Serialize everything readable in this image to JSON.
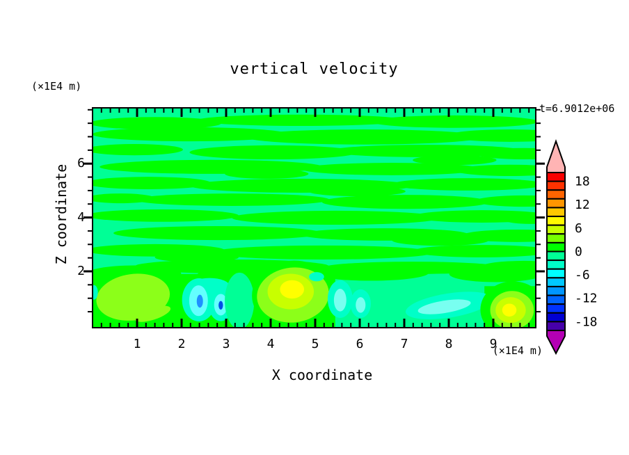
{
  "page": {
    "background": "#ffffff",
    "text_color": "#000000"
  },
  "chart_data": {
    "type": "heatmap",
    "subtype": "filled-contour",
    "title": "vertical velocity",
    "time_annotation": "t=6.9012e+06",
    "x_axis": {
      "label": "X coordinate",
      "units_label": "(×1E4 m)",
      "min": 0,
      "max": 9.95,
      "major_ticks": [
        1,
        2,
        3,
        4,
        5,
        6,
        7,
        8,
        9
      ],
      "minor_tick_step": 0.2
    },
    "z_axis": {
      "label": "Z coordinate",
      "units_label": "(×1E4 m)",
      "min": 0,
      "max": 8.07,
      "major_ticks": [
        2,
        4,
        6
      ],
      "minor_tick_step": 0.5
    },
    "colorbar": {
      "tick_labels": [
        18,
        12,
        6,
        0,
        -6,
        -12,
        -18
      ],
      "max_level": 20.25,
      "min_level": -20.25,
      "level_interval": 2.25,
      "colors_top_to_bottom": [
        "#fa0000",
        "#ff3200",
        "#ff6400",
        "#ff9600",
        "#ffc800",
        "#fffa00",
        "#c8ff00",
        "#78ff00",
        "#00ff00",
        "#00ff96",
        "#00ffc8",
        "#00ffff",
        "#00c8ff",
        "#0096ff",
        "#0064ff",
        "#0032ff",
        "#0000d2",
        "#4600aa"
      ],
      "over_arrow_color": "#ffb4b4",
      "under_arrow_color": "#b400b4"
    },
    "field": {
      "description": "Vertical velocity field: weak alternating horizontal streaks near 0 (values between -2.25 and +2.25) above z=2; stronger convective structures below z=2 with updraft maxima ~+8 near x=4.5,z=1.3 and x=9.4,z=0.6, a broad updraft ~+4 near x=0.9,z=1.0, and downdraft cores to ~ -10 near x=2.4-2.9,z=0.8-0.9.",
      "background_color": "#00ff96",
      "background_value_range": [
        -2.25,
        0
      ],
      "streak_color": "#00ff00",
      "streak_value_range": [
        0,
        2.25
      ],
      "streaks": [
        [
          1.41,
          7.5,
          1.48,
          0.23
        ],
        [
          4.69,
          7.61,
          2.34,
          0.21
        ],
        [
          8.13,
          7.56,
          1.88,
          0.23
        ],
        [
          2.19,
          7.09,
          2.19,
          0.26
        ],
        [
          6.09,
          6.99,
          2.66,
          0.28
        ],
        [
          9.38,
          7.04,
          1.41,
          0.23
        ],
        [
          0.94,
          6.52,
          1.09,
          0.21
        ],
        [
          4.06,
          6.42,
          1.88,
          0.26
        ],
        [
          7.5,
          6.47,
          2.19,
          0.23
        ],
        [
          9.69,
          6.37,
          1.09,
          0.21
        ],
        [
          2.66,
          5.88,
          2.5,
          0.26
        ],
        [
          6.72,
          5.8,
          2.03,
          0.23
        ],
        [
          9.38,
          5.75,
          1.25,
          0.21
        ],
        [
          1.25,
          5.28,
          1.41,
          0.23
        ],
        [
          4.69,
          5.18,
          2.5,
          0.26
        ],
        [
          8.44,
          5.23,
          1.72,
          0.23
        ],
        [
          3.13,
          4.66,
          2.19,
          0.23
        ],
        [
          7.03,
          4.58,
          1.88,
          0.26
        ],
        [
          9.69,
          4.61,
          1.09,
          0.21
        ],
        [
          1.56,
          4.07,
          1.72,
          0.23
        ],
        [
          5.47,
          3.99,
          2.34,
          0.26
        ],
        [
          8.75,
          4.04,
          1.56,
          0.23
        ],
        [
          2.81,
          3.42,
          2.34,
          0.26
        ],
        [
          6.56,
          3.37,
          1.88,
          0.23
        ],
        [
          9.53,
          3.32,
          1.25,
          0.23
        ],
        [
          1.41,
          2.78,
          1.56,
          0.23
        ],
        [
          5.16,
          2.7,
          2.5,
          0.26
        ],
        [
          8.75,
          2.75,
          1.56,
          0.23
        ],
        [
          3.13,
          2.18,
          2.19,
          0.26
        ],
        [
          7.19,
          2.13,
          2.03,
          0.23
        ],
        [
          9.69,
          2.18,
          0.94,
          0.21
        ],
        [
          8.13,
          6.13,
          0.94,
          0.18
        ],
        [
          0.63,
          4.71,
          0.78,
          0.18
        ],
        [
          3.91,
          5.62,
          0.94,
          0.18
        ],
        [
          5.94,
          4.97,
          1.09,
          0.18
        ],
        [
          9.84,
          3.94,
          0.63,
          0.18
        ],
        [
          2.34,
          2.52,
          0.94,
          0.18
        ],
        [
          7.81,
          3.16,
          1.09,
          0.21
        ]
      ],
      "bands": [
        [
          0.0,
          5.45,
          -0.1,
          1.9,
          "#00ff00"
        ],
        [
          8.8,
          9.96,
          -0.1,
          1.45,
          "#00ff00"
        ]
      ],
      "features": [
        [
          0.94,
          1.92,
          1.05,
          0.3,
          "#00ff00",
          0
        ],
        [
          3.59,
          1.85,
          1.25,
          0.33,
          "#00ff00",
          0
        ],
        [
          6.25,
          1.95,
          1.3,
          0.3,
          "#00ff00",
          0
        ],
        [
          9.06,
          1.9,
          1.05,
          0.3,
          "#00ff00",
          0
        ],
        [
          0.91,
          1.04,
          0.83,
          0.86,
          "#8cff19",
          -8
        ],
        [
          1.35,
          0.42,
          0.42,
          0.22,
          "#8cff19",
          -18
        ],
        [
          2.63,
          1.45,
          0.45,
          0.3,
          "#00ffc8",
          0
        ],
        [
          2.39,
          0.94,
          0.38,
          0.8,
          "#00ffc8",
          0
        ],
        [
          2.38,
          0.91,
          0.21,
          0.57,
          "#64ffff",
          0
        ],
        [
          2.41,
          0.89,
          0.07,
          0.24,
          "#1e90ff",
          0
        ],
        [
          2.88,
          0.81,
          0.28,
          0.66,
          "#00ffc8",
          0
        ],
        [
          2.88,
          0.76,
          0.15,
          0.4,
          "#64ffff",
          0
        ],
        [
          2.88,
          0.74,
          0.05,
          0.16,
          "#0050e6",
          0
        ],
        [
          3.3,
          0.9,
          0.33,
          1.05,
          "#00ff96",
          0
        ],
        [
          4.53,
          1.1,
          0.95,
          1.3,
          "#00ff00",
          0
        ],
        [
          4.5,
          1.12,
          0.81,
          1.02,
          "#8cff19",
          -6
        ],
        [
          4.45,
          1.25,
          0.52,
          0.66,
          "#c8ff00",
          0
        ],
        [
          4.48,
          1.33,
          0.27,
          0.34,
          "#ffff00",
          0
        ],
        [
          5.03,
          1.8,
          0.17,
          0.17,
          "#00ffc8",
          0
        ],
        [
          5.56,
          0.97,
          0.28,
          0.7,
          "#00ffc8",
          0
        ],
        [
          5.56,
          0.93,
          0.14,
          0.42,
          "#78fff0",
          0
        ],
        [
          6.02,
          0.8,
          0.23,
          0.53,
          "#00ffc8",
          0
        ],
        [
          6.02,
          0.75,
          0.11,
          0.29,
          "#78fff0",
          0
        ],
        [
          8.0,
          0.73,
          0.98,
          0.45,
          "#00ffc8",
          -9
        ],
        [
          7.9,
          0.68,
          0.6,
          0.23,
          "#78fff0",
          -9
        ],
        [
          9.44,
          0.58,
          0.73,
          1.05,
          "#00ff00",
          0
        ],
        [
          9.42,
          0.56,
          0.49,
          0.71,
          "#8cff19",
          0
        ],
        [
          9.39,
          0.56,
          0.34,
          0.48,
          "#c8ff00",
          0
        ],
        [
          9.36,
          0.56,
          0.16,
          0.24,
          "#ffff00",
          0
        ],
        [
          0.03,
          1.22,
          0.09,
          0.27,
          "#00ffc8",
          0
        ]
      ]
    },
    "legend_position": "right",
    "grid": false
  }
}
